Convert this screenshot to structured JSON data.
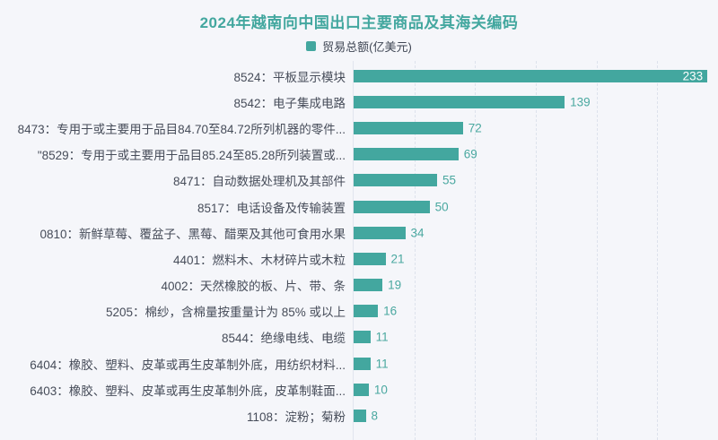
{
  "header": {
    "title": "2024年越南向中国出口主要商品及其海关编码",
    "legend": {
      "label": "贸易总额(亿美元)",
      "swatch_color": "#43a79f"
    }
  },
  "chart_data": {
    "type": "bar",
    "orientation": "horizontal",
    "title": "2024年越南向中国出口主要商品及其海关编码",
    "legend": [
      "贸易总额(亿美元)"
    ],
    "categories": [
      "8524：平板显示模块",
      "8542：电子集成电路",
      "8473：专用于或主要用于品目84.70至84.72所列机器的零件...",
      "\"8529：专用于或主要用于品目85.24至85.28所列装置或...",
      "8471：自动数据处理机及其部件",
      "8517：电话设备及传输装置",
      "0810：新鲜草莓、覆盆子、黑莓、醋栗及其他可食用水果",
      "4401：燃料木、木材碎片或木粒",
      "4002：天然橡胶的板、片、带、条",
      "5205：棉纱，含棉量按重量计为 85% 或以上",
      "8544：绝缘电线、电缆",
      "6404：橡胶、塑料、皮革或再生皮革制外底，用纺织材料...",
      "6403：橡胶、塑料、皮革或再生皮革制外底，皮革制鞋面...",
      "1108：淀粉；菊粉"
    ],
    "values": [
      233,
      139,
      72,
      69,
      55,
      50,
      34,
      21,
      19,
      16,
      11,
      11,
      10,
      8
    ],
    "xlabel": "",
    "ylabel": "",
    "xlim": [
      0,
      240
    ],
    "grid_ticks": [
      40,
      80,
      120,
      160,
      200
    ],
    "grid": true,
    "bar_color": "#43a79f",
    "value_label_color": "#4aa8a0",
    "value_label_inside_color": "#ffffff",
    "background_color": "#f5f6fa"
  }
}
